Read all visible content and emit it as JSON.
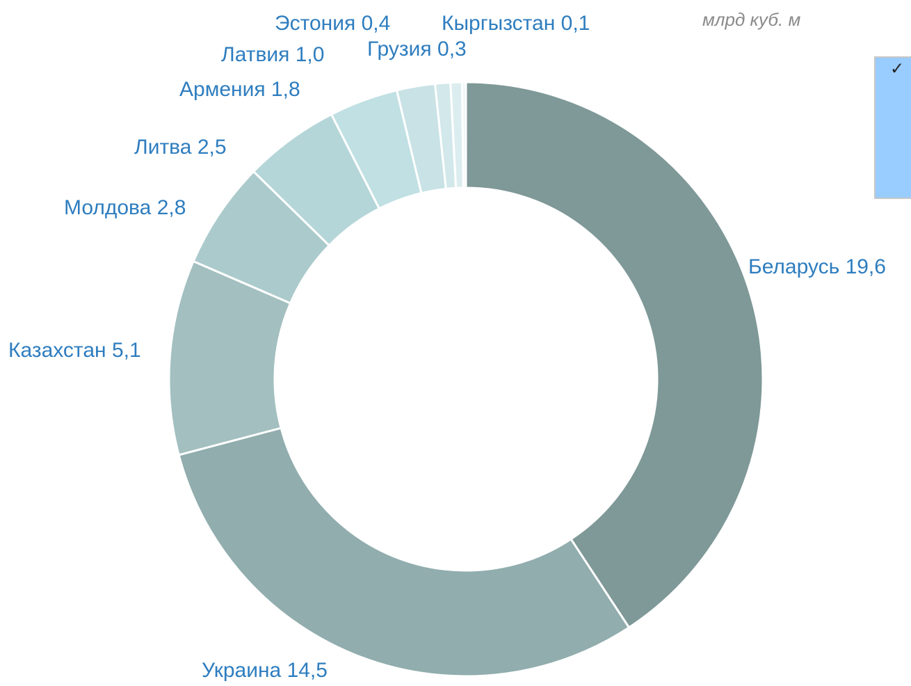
{
  "chart_data": {
    "type": "donut",
    "subtitle": "млрд куб. м",
    "categories": [
      "Беларусь",
      "Украина",
      "Казахстан",
      "Молдова",
      "Литва",
      "Армения",
      "Латвия",
      "Эстония",
      "Грузия",
      "Кыргызстан"
    ],
    "values": [
      19.6,
      14.5,
      5.1,
      2.8,
      2.5,
      1.8,
      1.0,
      0.4,
      0.3,
      0.1
    ],
    "value_labels": [
      "19,6",
      "14,5",
      "5,1",
      "2,8",
      "2,5",
      "1,8",
      "1,0",
      "0,4",
      "0,3",
      "0,1"
    ],
    "colors": [
      "#7f9898",
      "#91adae",
      "#a3bfc0",
      "#abcacc",
      "#b5d6d8",
      "#c0e0e3",
      "#c8e2e5",
      "#d2e8ea",
      "#dcedef",
      "#eef6f7"
    ]
  },
  "overlay": {
    "text": "✓"
  }
}
